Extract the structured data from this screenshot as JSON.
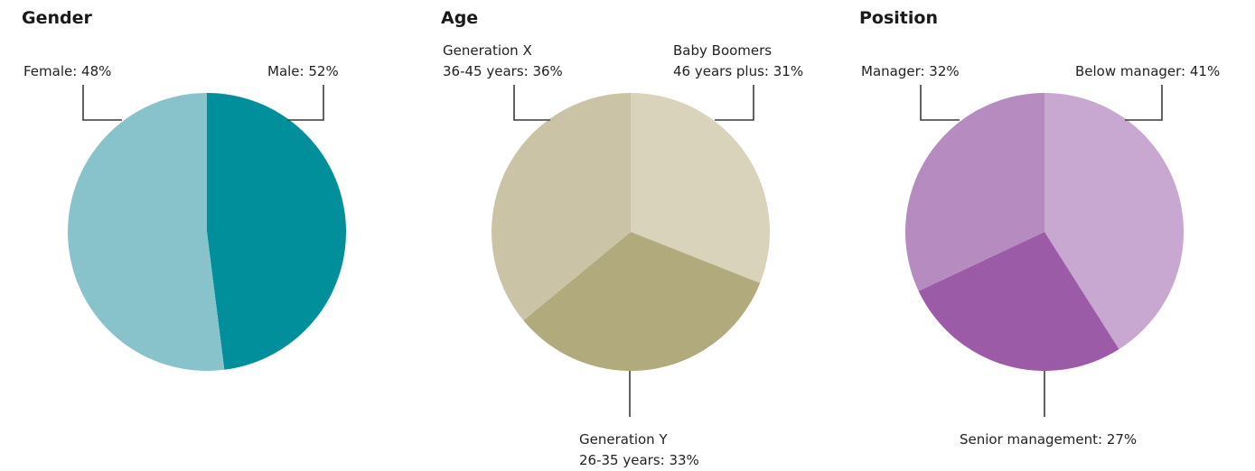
{
  "chart_data": [
    {
      "type": "pie",
      "title": "Gender",
      "slices": [
        {
          "label": "Female: 48%",
          "lines": [
            "Female: 48%"
          ],
          "value": 48,
          "color": "#008f9b"
        },
        {
          "label": "Male: 52%",
          "lines": [
            "Male: 52%"
          ],
          "value": 52,
          "color": "#88c3cc"
        }
      ]
    },
    {
      "type": "pie",
      "title": "Age",
      "slices": [
        {
          "label": "Baby Boomers 46 years plus: 31%",
          "lines": [
            "Baby Boomers",
            "46 years plus: 31%"
          ],
          "value": 31,
          "color": "#d9d3bb"
        },
        {
          "label": "Generation Y 26-35 years: 33%",
          "lines": [
            "Generation Y",
            "26-35 years: 33%"
          ],
          "value": 33,
          "color": "#b0aa7d"
        },
        {
          "label": "Generation X 36-45 years: 36%",
          "lines": [
            "Generation X",
            "36-45 years: 36%"
          ],
          "value": 36,
          "color": "#cbc3a5"
        }
      ]
    },
    {
      "type": "pie",
      "title": "Position",
      "slices": [
        {
          "label": "Below manager: 41%",
          "lines": [
            "Below manager: 41%"
          ],
          "value": 41,
          "color": "#c8a8d0"
        },
        {
          "label": "Senior management: 27%",
          "lines": [
            "Senior management: 27%"
          ],
          "value": 27,
          "color": "#9b5ba6"
        },
        {
          "label": "Manager: 32%",
          "lines": [
            "Manager: 32%"
          ],
          "value": 32,
          "color": "#b68bbf"
        }
      ]
    }
  ]
}
